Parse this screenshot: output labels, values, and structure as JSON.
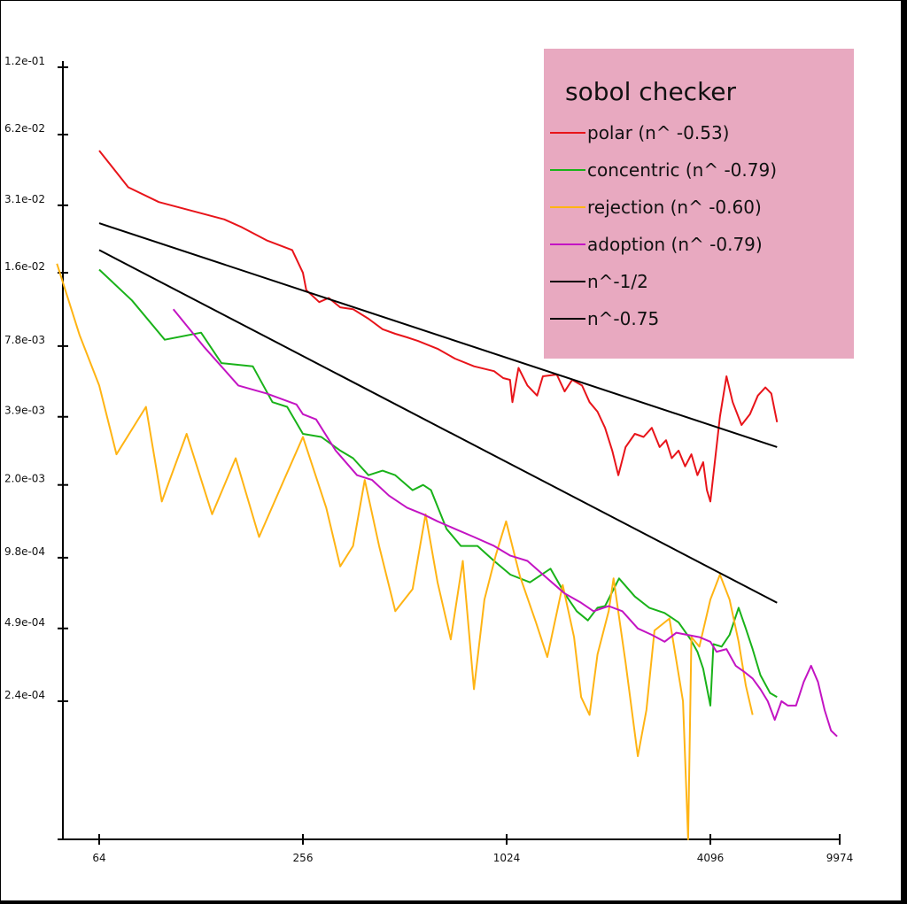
{
  "chart_data": {
    "type": "line",
    "title": "",
    "xlabel": "",
    "ylabel": "",
    "x_scale": "log",
    "y_scale": "log",
    "xlim": [
      48,
      9974
    ],
    "ylim": [
      6.2e-05,
      0.12
    ],
    "x_ticks": [
      {
        "value": 64,
        "label": "64"
      },
      {
        "value": 256,
        "label": "256"
      },
      {
        "value": 1024,
        "label": "1024"
      },
      {
        "value": 4096,
        "label": "4096"
      },
      {
        "value": 9974,
        "label": "9974"
      }
    ],
    "y_ticks": [
      {
        "value": 0.12,
        "label": "1.2e-01"
      },
      {
        "value": 0.062,
        "label": "6.2e-02"
      },
      {
        "value": 0.031,
        "label": "3.1e-02"
      },
      {
        "value": 0.016,
        "label": "1.6e-02"
      },
      {
        "value": 0.0078,
        "label": "7.8e-03"
      },
      {
        "value": 0.0039,
        "label": "3.9e-03"
      },
      {
        "value": 0.002,
        "label": "2.0e-03"
      },
      {
        "value": 0.00098,
        "label": "9.8e-04"
      },
      {
        "value": 0.00049,
        "label": "4.9e-04"
      },
      {
        "value": 0.00024,
        "label": "2.4e-04"
      }
    ],
    "grid": false,
    "legend": {
      "title": "sobol checker",
      "placement": "top-right",
      "background": "#e8a9c0"
    },
    "series": [
      {
        "name": "polar (n^ -0.53)",
        "color": "#e8141a",
        "points": [
          [
            64,
            0.053
          ],
          [
            78,
            0.037
          ],
          [
            96,
            0.032
          ],
          [
            150,
            0.027
          ],
          [
            169,
            0.025
          ],
          [
            200,
            0.022
          ],
          [
            238,
            0.02
          ],
          [
            256,
            0.016
          ],
          [
            262,
            0.0135
          ],
          [
            286,
            0.012
          ],
          [
            305,
            0.0125
          ],
          [
            330,
            0.0114
          ],
          [
            360,
            0.0112
          ],
          [
            400,
            0.0102
          ],
          [
            440,
            0.0092
          ],
          [
            480,
            0.0088
          ],
          [
            520,
            0.0085
          ],
          [
            560,
            0.0082
          ],
          [
            640,
            0.0076
          ],
          [
            720,
            0.0069
          ],
          [
            820,
            0.0064
          ],
          [
            940,
            0.0061
          ],
          [
            1000,
            0.0057
          ],
          [
            1048,
            0.0056
          ],
          [
            1065,
            0.0045
          ],
          [
            1110,
            0.0063
          ],
          [
            1180,
            0.0053
          ],
          [
            1260,
            0.0048
          ],
          [
            1310,
            0.0058
          ],
          [
            1440,
            0.0059
          ],
          [
            1520,
            0.005
          ],
          [
            1600,
            0.0056
          ],
          [
            1710,
            0.0053
          ],
          [
            1800,
            0.0045
          ],
          [
            1900,
            0.0041
          ],
          [
            2000,
            0.0035
          ],
          [
            2100,
            0.0028
          ],
          [
            2190,
            0.0022
          ],
          [
            2300,
            0.0029
          ],
          [
            2450,
            0.0033
          ],
          [
            2600,
            0.0032
          ],
          [
            2750,
            0.0035
          ],
          [
            2900,
            0.0029
          ],
          [
            3030,
            0.0031
          ],
          [
            3150,
            0.0026
          ],
          [
            3300,
            0.0028
          ],
          [
            3450,
            0.0024
          ],
          [
            3600,
            0.0027
          ],
          [
            3750,
            0.0022
          ],
          [
            3900,
            0.0025
          ],
          [
            4000,
            0.0019
          ],
          [
            4096,
            0.0017
          ],
          [
            4400,
            0.0039
          ],
          [
            4600,
            0.0058
          ],
          [
            4800,
            0.0045
          ],
          [
            5100,
            0.0036
          ],
          [
            5400,
            0.004
          ],
          [
            5700,
            0.0048
          ],
          [
            6000,
            0.0052
          ],
          [
            6250,
            0.0049
          ],
          [
            6500,
            0.0037
          ]
        ]
      },
      {
        "name": "concentric (n^ -0.79)",
        "color": "#19b219",
        "points": [
          [
            64,
            0.0165
          ],
          [
            80,
            0.0122
          ],
          [
            100,
            0.0083
          ],
          [
            128,
            0.0089
          ],
          [
            147,
            0.0066
          ],
          [
            182,
            0.0064
          ],
          [
            208,
            0.0045
          ],
          [
            230,
            0.0043
          ],
          [
            256,
            0.0033
          ],
          [
            290,
            0.0032
          ],
          [
            330,
            0.0028
          ],
          [
            360,
            0.0026
          ],
          [
            400,
            0.0022
          ],
          [
            440,
            0.0023
          ],
          [
            480,
            0.0022
          ],
          [
            540,
            0.0019
          ],
          [
            580,
            0.002
          ],
          [
            612,
            0.0019
          ],
          [
            680,
            0.0013
          ],
          [
            750,
            0.0011
          ],
          [
            840,
            0.0011
          ],
          [
            940,
            0.00095
          ],
          [
            1050,
            0.00083
          ],
          [
            1200,
            0.00077
          ],
          [
            1380,
            0.00088
          ],
          [
            1520,
            0.00069
          ],
          [
            1650,
            0.00058
          ],
          [
            1780,
            0.00053
          ],
          [
            1900,
            0.0006
          ],
          [
            2000,
            0.00061
          ],
          [
            2200,
            0.0008
          ],
          [
            2450,
            0.00067
          ],
          [
            2700,
            0.0006
          ],
          [
            3000,
            0.00057
          ],
          [
            3300,
            0.00052
          ],
          [
            3580,
            0.00044
          ],
          [
            3750,
            0.00039
          ],
          [
            3900,
            0.00033
          ],
          [
            4096,
            0.00023
          ],
          [
            4210,
            0.00042
          ],
          [
            4450,
            0.00041
          ],
          [
            4700,
            0.00046
          ],
          [
            5000,
            0.0006
          ],
          [
            5250,
            0.00049
          ],
          [
            5500,
            0.0004
          ],
          [
            5800,
            0.00031
          ],
          [
            6200,
            0.00026
          ],
          [
            6500,
            0.00025
          ]
        ]
      },
      {
        "name": "rejection (n^ -0.60)",
        "color": "#ffb414",
        "points": [
          [
            48,
            0.0175
          ],
          [
            56,
            0.0087
          ],
          [
            64,
            0.0053
          ],
          [
            72,
            0.0027
          ],
          [
            88,
            0.0043
          ],
          [
            98,
            0.0017
          ],
          [
            116,
            0.0033
          ],
          [
            138,
            0.0015
          ],
          [
            162,
            0.0026
          ],
          [
            190,
            0.0012
          ],
          [
            225,
            0.0021
          ],
          [
            256,
            0.0032
          ],
          [
            300,
            0.0016
          ],
          [
            330,
            0.0009
          ],
          [
            360,
            0.0011
          ],
          [
            390,
            0.0021
          ],
          [
            430,
            0.0011
          ],
          [
            480,
            0.00058
          ],
          [
            540,
            0.00072
          ],
          [
            590,
            0.0015
          ],
          [
            640,
            0.00077
          ],
          [
            700,
            0.00044
          ],
          [
            760,
            0.00095
          ],
          [
            820,
            0.00027
          ],
          [
            880,
            0.00065
          ],
          [
            950,
            0.001
          ],
          [
            1020,
            0.0014
          ],
          [
            1120,
            0.00082
          ],
          [
            1250,
            0.00052
          ],
          [
            1350,
            0.00037
          ],
          [
            1500,
            0.00075
          ],
          [
            1620,
            0.00045
          ],
          [
            1700,
            0.00025
          ],
          [
            1800,
            0.00021
          ],
          [
            1900,
            0.00038
          ],
          [
            2050,
            0.00058
          ],
          [
            2120,
            0.0008
          ],
          [
            2300,
            0.00035
          ],
          [
            2500,
            0.00014
          ],
          [
            2650,
            0.00022
          ],
          [
            2800,
            0.00048
          ],
          [
            3100,
            0.00054
          ],
          [
            3400,
            0.00024
          ],
          [
            3520,
            6.2e-05
          ],
          [
            3600,
            0.00045
          ],
          [
            3800,
            0.00041
          ],
          [
            4096,
            0.00065
          ],
          [
            4400,
            0.00083
          ],
          [
            4700,
            0.00065
          ],
          [
            5000,
            0.00043
          ],
          [
            5250,
            0.00028
          ],
          [
            5500,
            0.00021
          ]
        ]
      },
      {
        "name": "adoption (n^ -0.79)",
        "color": "#c314c3",
        "points": [
          [
            106,
            0.0112
          ],
          [
            130,
            0.0078
          ],
          [
            165,
            0.0053
          ],
          [
            200,
            0.0049
          ],
          [
            245,
            0.0044
          ],
          [
            256,
            0.004
          ],
          [
            280,
            0.0038
          ],
          [
            320,
            0.0028
          ],
          [
            370,
            0.0022
          ],
          [
            410,
            0.0021
          ],
          [
            460,
            0.0018
          ],
          [
            520,
            0.0016
          ],
          [
            580,
            0.0015
          ],
          [
            640,
            0.0014
          ],
          [
            720,
            0.0013
          ],
          [
            820,
            0.0012
          ],
          [
            940,
            0.0011
          ],
          [
            1050,
            0.001
          ],
          [
            1180,
            0.00095
          ],
          [
            1350,
            0.0008
          ],
          [
            1520,
            0.00069
          ],
          [
            1700,
            0.00063
          ],
          [
            1850,
            0.00058
          ],
          [
            2050,
            0.00061
          ],
          [
            2250,
            0.00058
          ],
          [
            2500,
            0.00049
          ],
          [
            2750,
            0.00046
          ],
          [
            3000,
            0.00043
          ],
          [
            3250,
            0.00047
          ],
          [
            3500,
            0.00046
          ],
          [
            3800,
            0.00045
          ],
          [
            4096,
            0.00043
          ],
          [
            4300,
            0.00039
          ],
          [
            4600,
            0.0004
          ],
          [
            4900,
            0.00034
          ],
          [
            5200,
            0.00032
          ],
          [
            5500,
            0.0003
          ],
          [
            5800,
            0.00027
          ],
          [
            6100,
            0.00024
          ],
          [
            6400,
            0.0002
          ],
          [
            6700,
            0.00024
          ],
          [
            7000,
            0.00023
          ],
          [
            7400,
            0.00023
          ],
          [
            7800,
            0.00029
          ],
          [
            8200,
            0.00034
          ],
          [
            8600,
            0.00029
          ],
          [
            9000,
            0.00022
          ],
          [
            9400,
            0.00018
          ],
          [
            9800,
            0.00017
          ]
        ]
      },
      {
        "name": "n^-1/2",
        "color": "#000000",
        "points": [
          [
            64,
            0.026
          ],
          [
            6500,
            0.0029
          ]
        ]
      },
      {
        "name": "n^-0.75",
        "color": "#000000",
        "points": [
          [
            64,
            0.02
          ],
          [
            6500,
            0.00063
          ]
        ]
      }
    ]
  }
}
